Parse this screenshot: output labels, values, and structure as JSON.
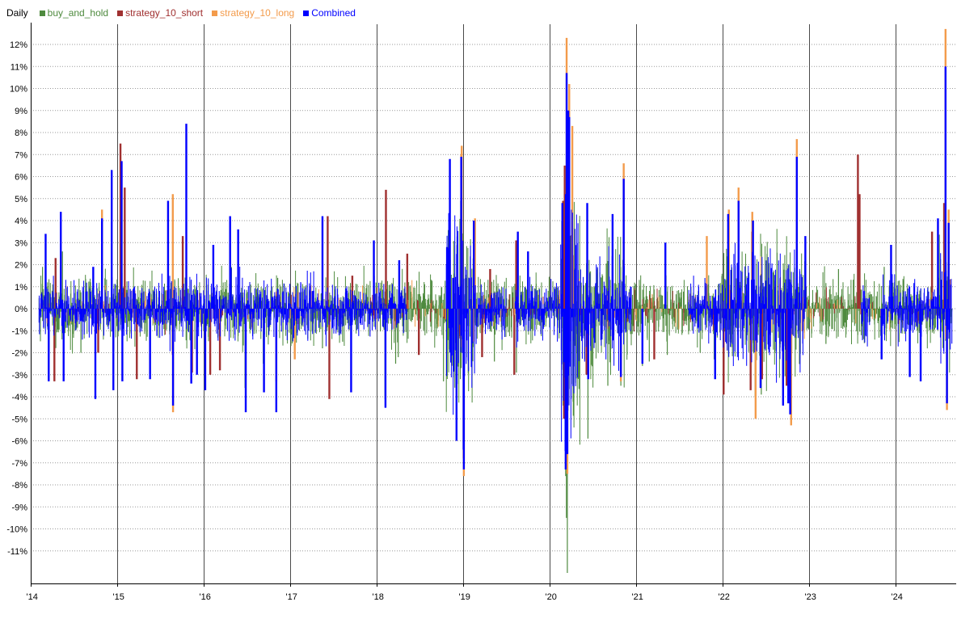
{
  "chart_data": {
    "type": "bar",
    "title": "Daily",
    "xlabel": "",
    "ylabel": "",
    "ylim": [
      -12.5,
      12.7
    ],
    "grid": true,
    "legend_position": "top-left",
    "y_ticks": [
      12,
      11,
      10,
      9,
      8,
      7,
      6,
      5,
      4,
      3,
      2,
      1,
      0,
      -1,
      -2,
      -3,
      -4,
      -5,
      -6,
      -7,
      -8,
      -9,
      -10,
      -11
    ],
    "y_tick_labels": [
      "12%",
      "11%",
      "10%",
      "9%",
      "8%",
      "7%",
      "6%",
      "5%",
      "4%",
      "3%",
      "2%",
      "1%",
      "0%",
      "-1%",
      "-2%",
      "-3%",
      "-4%",
      "-5%",
      "-6%",
      "-7%",
      "-8%",
      "-9%",
      "-10%",
      "-11%"
    ],
    "x_ticks": [
      {
        "date": "2014-01-01",
        "label": "'14"
      },
      {
        "date": "2015-01-01",
        "label": "'15"
      },
      {
        "date": "2016-01-01",
        "label": "'16"
      },
      {
        "date": "2017-01-01",
        "label": "'17"
      },
      {
        "date": "2018-01-01",
        "label": "'18"
      },
      {
        "date": "2019-01-01",
        "label": "'19"
      },
      {
        "date": "2020-01-01",
        "label": "'20"
      },
      {
        "date": "2021-01-01",
        "label": "'21"
      },
      {
        "date": "2022-01-01",
        "label": "'22"
      },
      {
        "date": "2023-01-01",
        "label": "'23"
      },
      {
        "date": "2024-01-01",
        "label": "'24"
      }
    ],
    "x_range": [
      "2014-01-01",
      "2024-09-01"
    ],
    "series": [
      {
        "name": "buy_and_hold",
        "color": "#4e8a3e",
        "points": [
          [
            "2014-02-20",
            1.9
          ],
          [
            "2014-03-20",
            -1.9
          ],
          [
            "2014-05-15",
            2.6
          ],
          [
            "2014-08-01",
            -2.0
          ],
          [
            "2015-08-24",
            5.0
          ],
          [
            "2015-08-25",
            -3.9
          ],
          [
            "2016-06-24",
            -3.6
          ],
          [
            "2016-09-09",
            -2.5
          ],
          [
            "2016-11-09",
            1.4
          ],
          [
            "2017-05-17",
            -1.8
          ],
          [
            "2017-08-10",
            -1.5
          ],
          [
            "2018-02-05",
            -4.1
          ],
          [
            "2018-02-08",
            -3.8
          ],
          [
            "2018-03-22",
            -2.5
          ],
          [
            "2018-04-02",
            -2.2
          ],
          [
            "2018-10-10",
            -3.3
          ],
          [
            "2018-12-24",
            -2.7
          ],
          [
            "2018-12-26",
            5.0
          ],
          [
            "2019-05-13",
            -2.4
          ],
          [
            "2019-08-05",
            -3.0
          ],
          [
            "2019-08-14",
            -2.9
          ],
          [
            "2020-02-27",
            -4.4
          ],
          [
            "2020-03-09",
            -7.6
          ],
          [
            "2020-03-12",
            -9.5
          ],
          [
            "2020-03-16",
            -12.0
          ],
          [
            "2020-03-13",
            9.3
          ],
          [
            "2020-03-24",
            9.4
          ],
          [
            "2020-06-11",
            -5.9
          ],
          [
            "2020-09-03",
            -3.5
          ],
          [
            "2020-10-28",
            -3.5
          ],
          [
            "2020-11-09",
            1.2
          ],
          [
            "2021-01-27",
            -2.6
          ],
          [
            "2021-02-25",
            -2.4
          ],
          [
            "2021-05-12",
            -2.1
          ],
          [
            "2021-09-28",
            -2.0
          ],
          [
            "2021-11-26",
            -2.3
          ],
          [
            "2022-05-18",
            -4.0
          ],
          [
            "2022-06-13",
            -3.9
          ],
          [
            "2022-09-13",
            -4.3
          ],
          [
            "2022-11-10",
            5.5
          ],
          [
            "2022-12-20",
            1.0
          ],
          [
            "2023-03-13",
            -1.6
          ],
          [
            "2023-05-05",
            1.8
          ],
          [
            "2023-11-14",
            1.9
          ],
          [
            "2024-08-05",
            -3.0
          ]
        ]
      },
      {
        "name": "strategy_10_short",
        "color": "#a03030",
        "points": [
          [
            "2014-04-11",
            -3.3
          ],
          [
            "2014-04-16",
            2.3
          ],
          [
            "2014-10-13",
            -2.0
          ],
          [
            "2014-12-16",
            -1.9
          ],
          [
            "2015-01-15",
            7.5
          ],
          [
            "2015-02-02",
            5.5
          ],
          [
            "2015-03-25",
            -3.2
          ],
          [
            "2015-08-24",
            -2.1
          ],
          [
            "2015-10-05",
            3.3
          ],
          [
            "2015-11-13",
            -2.9
          ],
          [
            "2016-01-29",
            -3.0
          ],
          [
            "2016-03-10",
            -2.8
          ],
          [
            "2017-06-08",
            4.2
          ],
          [
            "2017-06-15",
            -4.1
          ],
          [
            "2017-09-20",
            1.5
          ],
          [
            "2018-02-09",
            5.4
          ],
          [
            "2018-05-10",
            2.5
          ],
          [
            "2018-06-28",
            -2.1
          ],
          [
            "2019-03-22",
            -2.2
          ],
          [
            "2019-04-25",
            1.8
          ],
          [
            "2019-08-05",
            -3.0
          ],
          [
            "2019-08-13",
            3.1
          ],
          [
            "2020-02-27",
            4.9
          ],
          [
            "2020-03-02",
            -5.0
          ],
          [
            "2020-03-05",
            6.5
          ],
          [
            "2020-06-05",
            -3.0
          ],
          [
            "2021-03-18",
            -2.3
          ],
          [
            "2022-01-05",
            -3.9
          ],
          [
            "2022-04-29",
            -3.7
          ],
          [
            "2022-05-05",
            3.5
          ],
          [
            "2022-06-16",
            -3.2
          ],
          [
            "2022-09-28",
            -3.5
          ],
          [
            "2023-07-26",
            7.0
          ],
          [
            "2023-08-02",
            5.2
          ],
          [
            "2024-06-03",
            3.5
          ],
          [
            "2024-07-24",
            4.8
          ]
        ]
      },
      {
        "name": "strategy_10_long",
        "color": "#f39b4b",
        "points": [
          [
            "2014-10-29",
            4.5
          ],
          [
            "2015-08-24",
            5.2
          ],
          [
            "2015-08-25",
            -4.7
          ],
          [
            "2016-11-03",
            -3.3
          ],
          [
            "2017-01-20",
            -2.3
          ],
          [
            "2018-12-24",
            7.0
          ],
          [
            "2018-12-26",
            7.4
          ],
          [
            "2019-01-03",
            -6.8
          ],
          [
            "2019-01-04",
            -7.6
          ],
          [
            "2019-02-20",
            4.1
          ],
          [
            "2020-03-13",
            12.3
          ],
          [
            "2020-03-16",
            -7.5
          ],
          [
            "2020-03-24",
            10.2
          ],
          [
            "2020-04-06",
            8.3
          ],
          [
            "2020-11-09",
            6.6
          ],
          [
            "2020-10-28",
            -3.3
          ],
          [
            "2021-10-26",
            3.3
          ],
          [
            "2022-01-27",
            4.5
          ],
          [
            "2022-03-09",
            5.5
          ],
          [
            "2022-05-06",
            4.4
          ],
          [
            "2022-05-20",
            -5.0
          ],
          [
            "2022-09-13",
            -3.6
          ],
          [
            "2022-10-17",
            -5.3
          ],
          [
            "2022-11-10",
            7.7
          ],
          [
            "2024-07-30",
            12.7
          ],
          [
            "2024-08-05",
            -4.6
          ],
          [
            "2024-08-12",
            4.5
          ]
        ]
      },
      {
        "name": "Combined",
        "color": "#0000ff",
        "points": [
          [
            "2014-03-05",
            3.4
          ],
          [
            "2014-03-18",
            -3.3
          ],
          [
            "2014-05-08",
            4.4
          ],
          [
            "2014-05-20",
            -3.3
          ],
          [
            "2014-09-22",
            1.9
          ],
          [
            "2014-10-01",
            -4.1
          ],
          [
            "2014-10-29",
            4.1
          ],
          [
            "2014-12-09",
            6.3
          ],
          [
            "2014-12-16",
            -3.7
          ],
          [
            "2015-01-20",
            6.7
          ],
          [
            "2015-01-23",
            -3.3
          ],
          [
            "2015-05-20",
            -3.2
          ],
          [
            "2015-08-04",
            4.9
          ],
          [
            "2015-08-25",
            -4.4
          ],
          [
            "2015-10-20",
            8.4
          ],
          [
            "2015-11-10",
            -3.4
          ],
          [
            "2015-12-04",
            -3.0
          ],
          [
            "2016-01-08",
            -3.7
          ],
          [
            "2016-02-11",
            2.9
          ],
          [
            "2016-04-22",
            4.2
          ],
          [
            "2016-05-26",
            3.6
          ],
          [
            "2016-06-27",
            -4.7
          ],
          [
            "2016-09-12",
            -3.8
          ],
          [
            "2016-11-03",
            -4.7
          ],
          [
            "2017-05-17",
            4.2
          ],
          [
            "2017-09-15",
            -3.8
          ],
          [
            "2017-12-20",
            3.1
          ],
          [
            "2018-02-07",
            -4.5
          ],
          [
            "2018-04-06",
            2.2
          ],
          [
            "2018-10-25",
            2.8
          ],
          [
            "2018-11-06",
            6.8
          ],
          [
            "2018-11-20",
            1.4
          ],
          [
            "2018-12-04",
            -6.0
          ],
          [
            "2018-12-24",
            6.9
          ],
          [
            "2019-01-03",
            -6.4
          ],
          [
            "2019-01-04",
            -7.3
          ],
          [
            "2019-02-15",
            4.0
          ],
          [
            "2019-08-20",
            3.5
          ],
          [
            "2019-10-02",
            2.6
          ],
          [
            "2020-02-24",
            4.8
          ],
          [
            "2020-03-09",
            -7.3
          ],
          [
            "2020-03-10",
            5.2
          ],
          [
            "2020-03-13",
            10.7
          ],
          [
            "2020-03-16",
            -6.6
          ],
          [
            "2020-03-20",
            9.0
          ],
          [
            "2020-03-24",
            8.7
          ],
          [
            "2020-06-08",
            4.8
          ],
          [
            "2020-06-12",
            -3.2
          ],
          [
            "2020-09-23",
            4.3
          ],
          [
            "2020-11-09",
            5.9
          ],
          [
            "2020-10-28",
            -3.1
          ],
          [
            "2021-01-27",
            -2.5
          ],
          [
            "2021-05-04",
            3.0
          ],
          [
            "2021-11-30",
            -3.2
          ],
          [
            "2022-01-24",
            4.3
          ],
          [
            "2022-03-09",
            4.9
          ],
          [
            "2022-05-09",
            4.0
          ],
          [
            "2022-06-10",
            -3.6
          ],
          [
            "2022-09-13",
            -4.4
          ],
          [
            "2022-10-05",
            -4.3
          ],
          [
            "2022-10-13",
            -4.8
          ],
          [
            "2022-11-10",
            6.9
          ],
          [
            "2022-12-16",
            3.3
          ],
          [
            "2023-11-03",
            -2.3
          ],
          [
            "2023-12-13",
            2.9
          ],
          [
            "2024-03-01",
            -3.1
          ],
          [
            "2024-04-16",
            -3.3
          ],
          [
            "2024-06-28",
            4.1
          ],
          [
            "2024-07-30",
            11.0
          ],
          [
            "2024-08-05",
            -4.3
          ],
          [
            "2024-08-12",
            3.9
          ]
        ]
      }
    ],
    "noise_profile": {
      "description_note": "",
      "segments": []
    }
  }
}
